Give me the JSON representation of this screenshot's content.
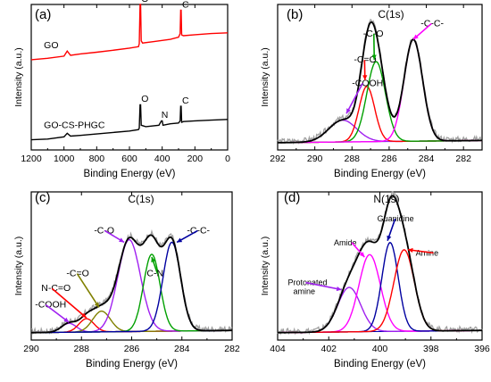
{
  "chart_data": [
    {
      "panel": "(a)",
      "type": "line",
      "xlabel": "Binding Energy (eV)",
      "ylabel": "Intensity (a.u.)",
      "xlim": [
        1200,
        0
      ],
      "xticks": [
        1200,
        1000,
        800,
        600,
        400,
        200,
        0
      ],
      "series": [
        {
          "name": "GO",
          "color": "#ff0000",
          "points": [
            [
              1200,
              0.62
            ],
            [
              1100,
              0.63
            ],
            [
              1000,
              0.645
            ],
            [
              980,
              0.68
            ],
            [
              960,
              0.65
            ],
            [
              900,
              0.66
            ],
            [
              800,
              0.672
            ],
            [
              700,
              0.685
            ],
            [
              600,
              0.7
            ],
            [
              545,
              0.71
            ],
            [
              540,
              0.73
            ],
            [
              535,
              1.0
            ],
            [
              532,
              1.0
            ],
            [
              528,
              0.75
            ],
            [
              520,
              0.735
            ],
            [
              450,
              0.745
            ],
            [
              350,
              0.76
            ],
            [
              300,
              0.775
            ],
            [
              290,
              0.8
            ],
            [
              287,
              0.96
            ],
            [
              284,
              0.96
            ],
            [
              281,
              0.79
            ],
            [
              270,
              0.785
            ],
            [
              200,
              0.792
            ],
            [
              100,
              0.8
            ],
            [
              0,
              0.805
            ]
          ]
        },
        {
          "name": "GO-CS-PHGC",
          "color": "#000000",
          "points": [
            [
              1200,
              0.07
            ],
            [
              1100,
              0.075
            ],
            [
              1000,
              0.09
            ],
            [
              980,
              0.115
            ],
            [
              960,
              0.095
            ],
            [
              900,
              0.1
            ],
            [
              800,
              0.11
            ],
            [
              700,
              0.12
            ],
            [
              600,
              0.13
            ],
            [
              545,
              0.14
            ],
            [
              540,
              0.15
            ],
            [
              535,
              0.31
            ],
            [
              532,
              0.31
            ],
            [
              528,
              0.17
            ],
            [
              500,
              0.16
            ],
            [
              420,
              0.17
            ],
            [
              405,
              0.2
            ],
            [
              400,
              0.2
            ],
            [
              395,
              0.17
            ],
            [
              350,
              0.18
            ],
            [
              300,
              0.185
            ],
            [
              290,
              0.2
            ],
            [
              287,
              0.3
            ],
            [
              284,
              0.3
            ],
            [
              281,
              0.19
            ],
            [
              270,
              0.195
            ],
            [
              200,
              0.2
            ],
            [
              100,
              0.205
            ],
            [
              0,
              0.21
            ]
          ]
        }
      ],
      "annotations": [
        {
          "text": "O",
          "x": 528,
          "y": 1.02
        },
        {
          "text": "C",
          "x": 278,
          "y": 0.98
        },
        {
          "text": "O",
          "x": 528,
          "y": 0.33
        },
        {
          "text": "N",
          "x": 405,
          "y": 0.22
        },
        {
          "text": "C",
          "x": 278,
          "y": 0.32
        }
      ]
    },
    {
      "panel": "(b)",
      "title": "C(1s)",
      "type": "line",
      "xlabel": "Binding Energy (eV)",
      "ylabel": "Intensity (a.u.)",
      "xlim": [
        292,
        281
      ],
      "xticks": [
        292,
        290,
        288,
        286,
        284,
        282
      ],
      "baseline": 0.05,
      "components": [
        {
          "label": "-COOH",
          "center": 288.5,
          "amp": 0.15,
          "width": 0.75,
          "color": "#a020f0"
        },
        {
          "label": "-C=O",
          "center": 287.2,
          "amp": 0.38,
          "width": 0.42,
          "color": "#ff0000"
        },
        {
          "label": "-C-O",
          "center": 286.7,
          "amp": 0.55,
          "width": 0.5,
          "color": "#00a000"
        },
        {
          "label": "-C-C-",
          "center": 284.7,
          "amp": 0.7,
          "width": 0.5,
          "color": "#ff00ff"
        }
      ],
      "envelope_color": "#000000",
      "raw_color": "#a0a0a0"
    },
    {
      "panel": "(c)",
      "title": "C(1s)",
      "type": "line",
      "xlabel": "Binding Energy (eV)",
      "ylabel": "Intensity (a.u.)",
      "xlim": [
        290,
        282
      ],
      "xticks": [
        290,
        288,
        286,
        284,
        282
      ],
      "baseline": 0.05,
      "components": [
        {
          "label": "-COOH",
          "center": 288.5,
          "amp": 0.06,
          "width": 0.3,
          "color": "#a020f0"
        },
        {
          "label": "N-C=O",
          "center": 287.8,
          "amp": 0.09,
          "width": 0.3,
          "color": "#ff0000"
        },
        {
          "label": "-C=O",
          "center": 287.2,
          "amp": 0.14,
          "width": 0.35,
          "color": "#808000"
        },
        {
          "label": "-C-O",
          "center": 286.1,
          "amp": 0.62,
          "width": 0.45,
          "color": "#a020f0"
        },
        {
          "label": "C-N",
          "center": 285.2,
          "amp": 0.52,
          "width": 0.33,
          "color": "#00a000"
        },
        {
          "label": "-C-C-",
          "center": 284.4,
          "amp": 0.6,
          "width": 0.35,
          "color": "#0000a0"
        }
      ],
      "envelope_color": "#000000",
      "raw_color": "#a0a0a0"
    },
    {
      "panel": "(d)",
      "title": "N(1s)",
      "type": "line",
      "xlabel": "Binding Energy (eV)",
      "ylabel": "Intensity (a.u.)",
      "xlim": [
        404,
        396
      ],
      "xticks": [
        404,
        402,
        400,
        398,
        396
      ],
      "baseline": 0.05,
      "components": [
        {
          "label": "Protonated amine",
          "center": 401.2,
          "amp": 0.3,
          "width": 0.45,
          "color": "#a020f0"
        },
        {
          "label": "Amide",
          "center": 400.4,
          "amp": 0.52,
          "width": 0.42,
          "color": "#ff00ff"
        },
        {
          "label": "Guanidine",
          "center": 399.6,
          "amp": 0.6,
          "width": 0.32,
          "color": "#0000a0"
        },
        {
          "label": "Amine",
          "center": 399.05,
          "amp": 0.55,
          "width": 0.4,
          "color": "#ff0000"
        }
      ],
      "envelope_color": "#000000",
      "raw_color": "#a0a0a0"
    }
  ]
}
